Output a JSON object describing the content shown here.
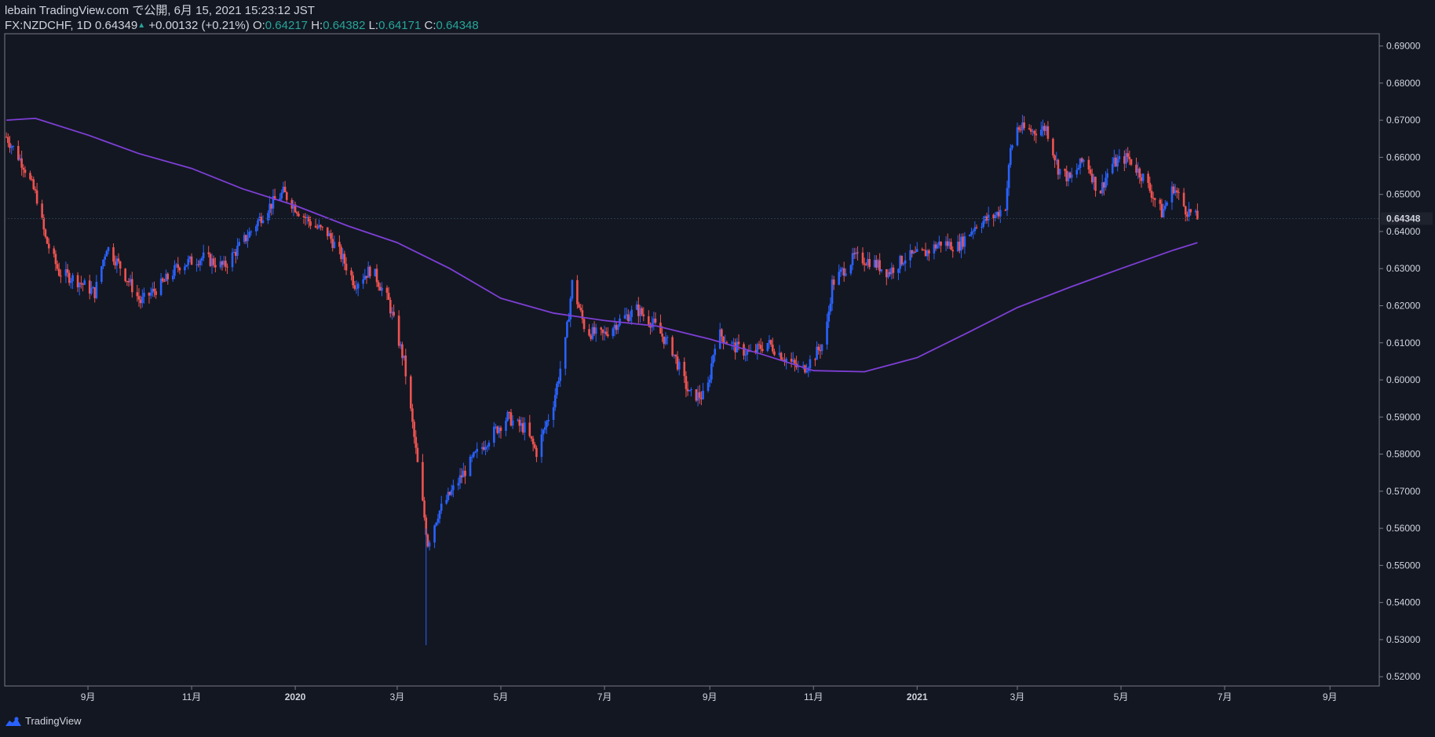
{
  "header": {
    "published": "lebain TradingView.com で公開, 6月 15, 2021 15:23:12 JST",
    "symbol": "FX:NZDCHF, 1D",
    "last": "0.64349",
    "arrow": "▲",
    "change": "+0.00132 (+0.21%)",
    "o_label": "O:",
    "o_value": "0.64217",
    "h_label": "H:",
    "h_value": "0.64382",
    "l_label": "L:",
    "l_value": "0.64171",
    "c_label": "C:",
    "c_value": "0.64348"
  },
  "footer": {
    "brand": "TradingView",
    "logo_icon": "tradingview-logo-icon"
  },
  "colors": {
    "background": "#131722",
    "up": "#2962ff",
    "down": "#ef5350",
    "ma": "#7e3fd6",
    "border": "#787b86",
    "text": "#d1d4dc"
  },
  "chart_data": {
    "type": "candlestick",
    "interval": "1D",
    "y_ticks": [
      "0.69000",
      "0.68000",
      "0.67000",
      "0.66000",
      "0.65000",
      "0.64000",
      "0.63000",
      "0.62000",
      "0.61000",
      "0.60000",
      "0.59000",
      "0.58000",
      "0.57000",
      "0.56000",
      "0.55000",
      "0.54000",
      "0.53000",
      "0.52000"
    ],
    "ylim": [
      0.5175,
      0.6933
    ],
    "last_price_label": "0.64348",
    "last_price": 0.64348,
    "x_ticks": [
      "9月",
      "11月",
      "2020",
      "3月",
      "5月",
      "7月",
      "9月",
      "11月",
      "2021",
      "3月",
      "5月",
      "7月",
      "9月"
    ],
    "x_tick_dates": [
      "2019-09-01",
      "2019-11-01",
      "2020-01-01",
      "2020-03-01",
      "2020-05-01",
      "2020-07-01",
      "2020-09-01",
      "2020-11-01",
      "2021-01-01",
      "2021-03-01",
      "2021-05-01",
      "2021-07-01",
      "2021-09-01"
    ],
    "price_path": [
      [
        "2019-07-15",
        0.6655
      ],
      [
        "2019-07-25",
        0.658
      ],
      [
        "2019-08-02",
        0.649
      ],
      [
        "2019-08-07",
        0.638
      ],
      [
        "2019-08-15",
        0.629
      ],
      [
        "2019-08-25",
        0.627
      ],
      [
        "2019-09-05",
        0.6235
      ],
      [
        "2019-09-12",
        0.636
      ],
      [
        "2019-09-20",
        0.6305
      ],
      [
        "2019-10-02",
        0.621
      ],
      [
        "2019-10-15",
        0.626
      ],
      [
        "2019-10-25",
        0.631
      ],
      [
        "2019-11-08",
        0.633
      ],
      [
        "2019-11-20",
        0.6305
      ],
      [
        "2019-12-05",
        0.6395
      ],
      [
        "2019-12-15",
        0.646
      ],
      [
        "2019-12-25",
        0.6505
      ],
      [
        "2020-01-03",
        0.6455
      ],
      [
        "2020-01-12",
        0.6415
      ],
      [
        "2020-01-20",
        0.6395
      ],
      [
        "2020-01-28",
        0.6335
      ],
      [
        "2020-02-05",
        0.626
      ],
      [
        "2020-02-15",
        0.63
      ],
      [
        "2020-02-25",
        0.621
      ],
      [
        "2020-03-05",
        0.605
      ],
      [
        "2020-03-10",
        0.588
      ],
      [
        "2020-03-15",
        0.57
      ],
      [
        "2020-03-19",
        0.556
      ],
      [
        "2020-03-25",
        0.564
      ],
      [
        "2020-04-05",
        0.572
      ],
      [
        "2020-04-15",
        0.579
      ],
      [
        "2020-04-25",
        0.585
      ],
      [
        "2020-05-05",
        0.59
      ],
      [
        "2020-05-10",
        0.588
      ],
      [
        "2020-05-15",
        0.587
      ],
      [
        "2020-05-22",
        0.5805
      ],
      [
        "2020-06-01",
        0.594
      ],
      [
        "2020-06-08",
        0.61
      ],
      [
        "2020-06-12",
        0.626
      ],
      [
        "2020-06-20",
        0.613
      ],
      [
        "2020-06-30",
        0.612
      ],
      [
        "2020-07-10",
        0.616
      ],
      [
        "2020-07-20",
        0.619
      ],
      [
        "2020-07-30",
        0.615
      ],
      [
        "2020-08-10",
        0.608
      ],
      [
        "2020-08-20",
        0.596
      ],
      [
        "2020-08-30",
        0.5955
      ],
      [
        "2020-09-05",
        0.613
      ],
      [
        "2020-09-15",
        0.609
      ],
      [
        "2020-09-25",
        0.607
      ],
      [
        "2020-10-05",
        0.61
      ],
      [
        "2020-10-15",
        0.606
      ],
      [
        "2020-10-25",
        0.6025
      ],
      [
        "2020-11-01",
        0.606
      ],
      [
        "2020-11-08",
        0.611
      ],
      [
        "2020-11-12",
        0.626
      ],
      [
        "2020-11-25",
        0.633
      ],
      [
        "2020-12-05",
        0.632
      ],
      [
        "2020-12-15",
        0.629
      ],
      [
        "2020-12-25",
        0.633
      ],
      [
        "2021-01-05",
        0.634
      ],
      [
        "2021-01-15",
        0.637
      ],
      [
        "2021-01-25",
        0.636
      ],
      [
        "2021-02-05",
        0.642
      ],
      [
        "2021-02-15",
        0.644
      ],
      [
        "2021-02-22",
        0.647
      ],
      [
        "2021-02-25",
        0.662
      ],
      [
        "2021-03-01",
        0.668
      ],
      [
        "2021-03-10",
        0.667
      ],
      [
        "2021-03-18",
        0.668
      ],
      [
        "2021-03-25",
        0.657
      ],
      [
        "2021-04-01",
        0.654
      ],
      [
        "2021-04-10",
        0.66
      ],
      [
        "2021-04-18",
        0.65
      ],
      [
        "2021-04-25",
        0.658
      ],
      [
        "2021-05-05",
        0.66
      ],
      [
        "2021-05-15",
        0.654
      ],
      [
        "2021-05-25",
        0.645
      ],
      [
        "2021-06-01",
        0.652
      ],
      [
        "2021-06-08",
        0.646
      ],
      [
        "2021-06-15",
        0.6435
      ]
    ],
    "moving_average": [
      [
        "2019-07-15",
        0.67
      ],
      [
        "2019-08-01",
        0.6705
      ],
      [
        "2019-09-01",
        0.666
      ],
      [
        "2019-10-01",
        0.661
      ],
      [
        "2019-11-01",
        0.657
      ],
      [
        "2019-12-01",
        0.6515
      ],
      [
        "2020-01-01",
        0.647
      ],
      [
        "2020-02-01",
        0.6415
      ],
      [
        "2020-03-01",
        0.637
      ],
      [
        "2020-04-01",
        0.63
      ],
      [
        "2020-05-01",
        0.622
      ],
      [
        "2020-06-01",
        0.618
      ],
      [
        "2020-07-01",
        0.616
      ],
      [
        "2020-08-01",
        0.6145
      ],
      [
        "2020-09-01",
        0.611
      ],
      [
        "2020-10-01",
        0.607
      ],
      [
        "2020-11-01",
        0.6025
      ],
      [
        "2020-12-01",
        0.6022
      ],
      [
        "2021-01-01",
        0.606
      ],
      [
        "2021-02-01",
        0.613
      ],
      [
        "2021-03-01",
        0.6195
      ],
      [
        "2021-04-01",
        0.625
      ],
      [
        "2021-05-01",
        0.63
      ],
      [
        "2021-06-01",
        0.635
      ],
      [
        "2021-06-15",
        0.637
      ]
    ]
  }
}
